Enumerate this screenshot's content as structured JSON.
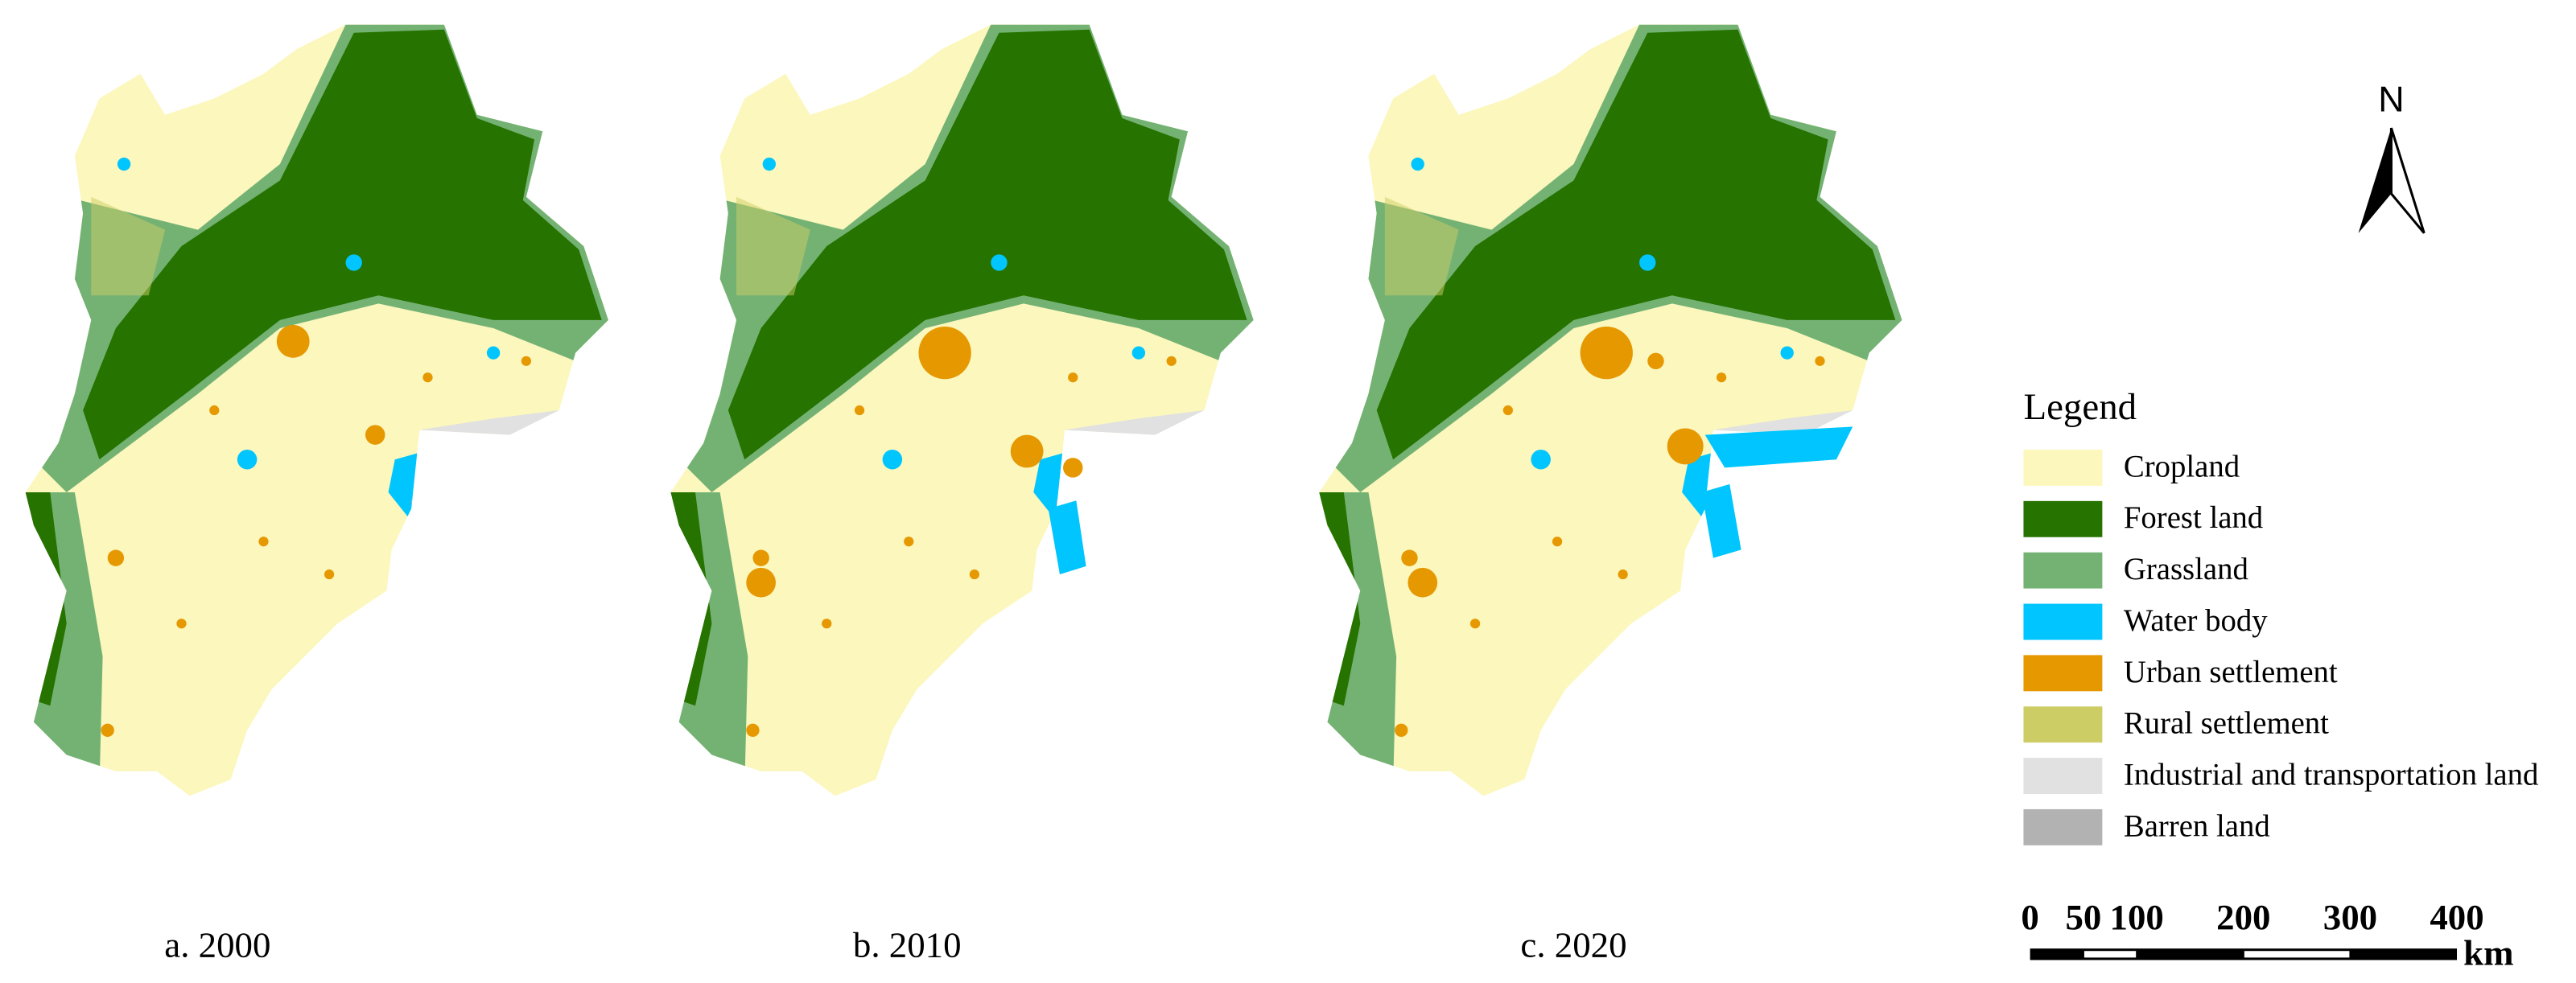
{
  "maps": [
    {
      "caption": "a. 2000"
    },
    {
      "caption": "b. 2010"
    },
    {
      "caption": "c. 2020"
    }
  ],
  "north_arrow": {
    "label": "N"
  },
  "legend": {
    "title": "Legend",
    "items": [
      {
        "label": "Cropland",
        "color": "#fbf7bd"
      },
      {
        "label": "Forest land",
        "color": "#267300"
      },
      {
        "label": "Grassland",
        "color": "#74b274"
      },
      {
        "label": "Water body",
        "color": "#00c5ff"
      },
      {
        "label": "Urban settlement",
        "color": "#e69800"
      },
      {
        "label": "Rural settlement",
        "color": "#cdcd66"
      },
      {
        "label": "Industrial and transportation land",
        "color": "#e1e1e1"
      },
      {
        "label": "Barren land",
        "color": "#b2b2b2"
      }
    ]
  },
  "scale_bar": {
    "ticks": [
      0,
      50,
      100,
      200,
      300,
      400
    ],
    "unit": "km"
  }
}
